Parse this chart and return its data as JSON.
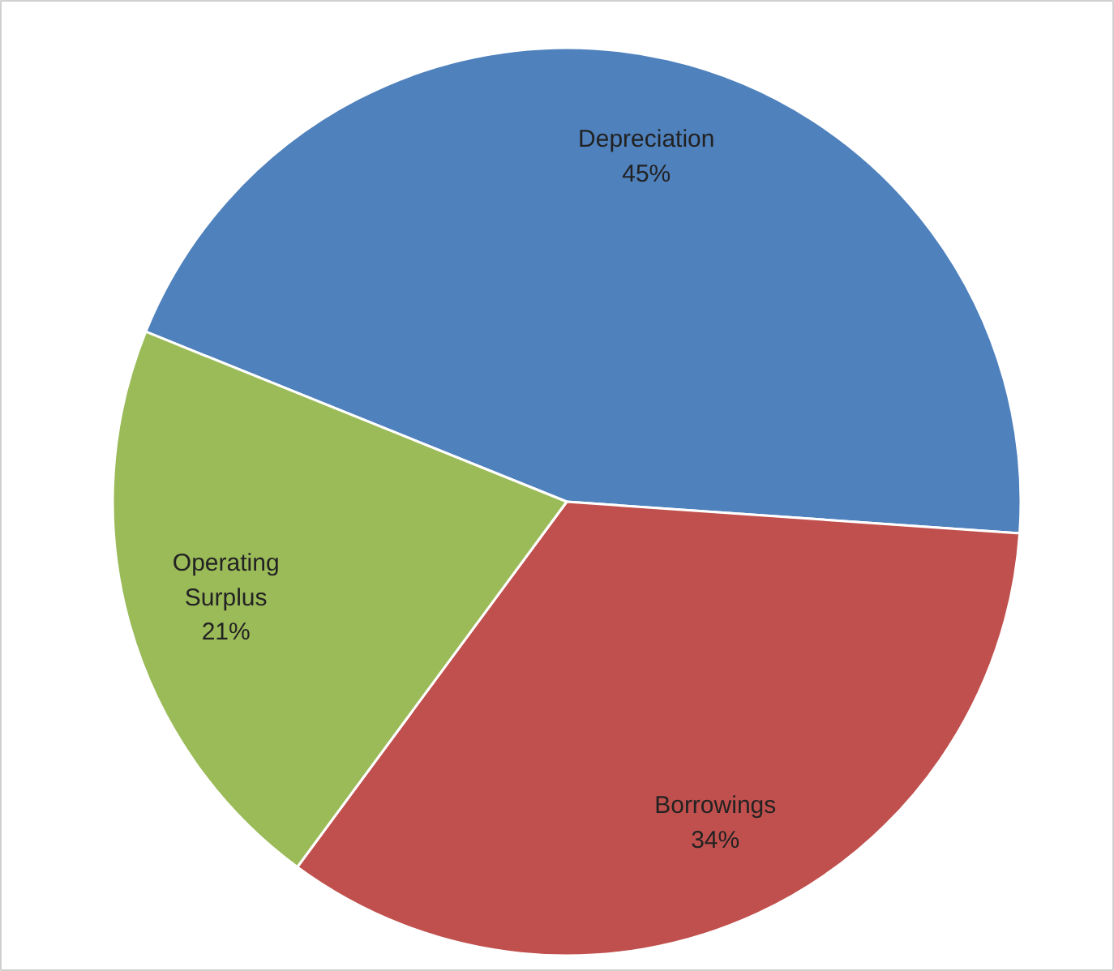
{
  "chart_data": {
    "type": "pie",
    "categories": [
      "Depreciation",
      "Borrowings",
      "Operating Surplus"
    ],
    "values": [
      45,
      34,
      21
    ],
    "value_labels": [
      "45%",
      "34%",
      "21%"
    ],
    "colors": [
      "#4f81bd",
      "#c0504d",
      "#9bbb59"
    ]
  }
}
